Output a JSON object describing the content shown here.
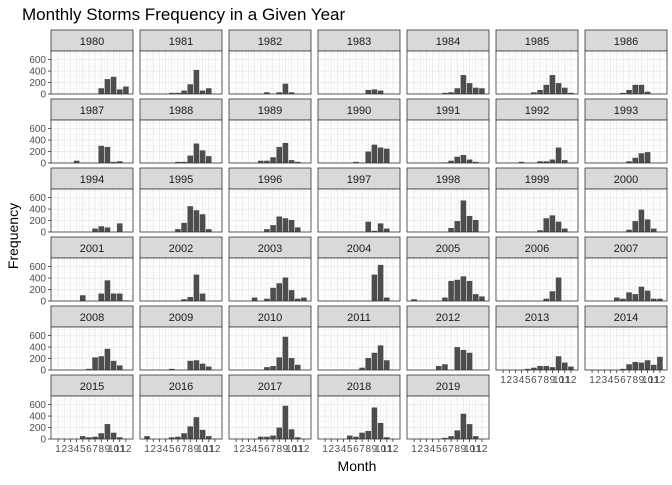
{
  "chart_data": {
    "type": "bar",
    "title": "Monthly Storms Frequency in a Given Year",
    "xlabel": "Month",
    "ylabel": "Frequency",
    "ylim": [
      0,
      750
    ],
    "yticks": [
      0,
      200,
      400,
      600
    ],
    "x_tick_labels": [
      "1",
      "2",
      "3",
      "4",
      "5",
      "6",
      "7",
      "8",
      "9",
      "10",
      "11",
      "12"
    ],
    "grid": true,
    "bar_color": "#4d4d4d",
    "strip_fill": "#d9d9d9",
    "panels": [
      {
        "year": "1980",
        "values": [
          0,
          0,
          0,
          0,
          0,
          0,
          0,
          100,
          260,
          300,
          80,
          130
        ]
      },
      {
        "year": "1981",
        "values": [
          0,
          0,
          0,
          0,
          20,
          20,
          60,
          170,
          420,
          60,
          100,
          0
        ]
      },
      {
        "year": "1982",
        "values": [
          0,
          0,
          0,
          0,
          0,
          30,
          0,
          30,
          180,
          30,
          0,
          0
        ]
      },
      {
        "year": "1983",
        "values": [
          0,
          0,
          0,
          0,
          0,
          0,
          0,
          70,
          80,
          60,
          0,
          0
        ]
      },
      {
        "year": "1984",
        "values": [
          0,
          0,
          0,
          0,
          0,
          20,
          30,
          100,
          330,
          190,
          110,
          100
        ]
      },
      {
        "year": "1985",
        "values": [
          0,
          0,
          0,
          0,
          0,
          30,
          70,
          160,
          330,
          190,
          110,
          20
        ]
      },
      {
        "year": "1986",
        "values": [
          0,
          0,
          0,
          0,
          0,
          20,
          70,
          160,
          160,
          40,
          0,
          0
        ]
      },
      {
        "year": "1987",
        "values": [
          0,
          0,
          0,
          40,
          0,
          0,
          0,
          300,
          280,
          20,
          30,
          0
        ]
      },
      {
        "year": "1988",
        "values": [
          0,
          0,
          0,
          0,
          0,
          20,
          20,
          130,
          340,
          220,
          120,
          0
        ]
      },
      {
        "year": "1989",
        "values": [
          0,
          0,
          0,
          0,
          40,
          40,
          100,
          280,
          350,
          50,
          20,
          0
        ]
      },
      {
        "year": "1990",
        "values": [
          0,
          0,
          0,
          0,
          0,
          20,
          0,
          200,
          320,
          270,
          250,
          0
        ]
      },
      {
        "year": "1991",
        "values": [
          0,
          0,
          0,
          0,
          0,
          10,
          40,
          110,
          140,
          60,
          20,
          0
        ]
      },
      {
        "year": "1992",
        "values": [
          0,
          0,
          0,
          20,
          0,
          0,
          30,
          30,
          60,
          270,
          50,
          0
        ]
      },
      {
        "year": "1993",
        "values": [
          0,
          0,
          0,
          0,
          0,
          0,
          30,
          90,
          170,
          190,
          0,
          0
        ]
      },
      {
        "year": "1994",
        "values": [
          0,
          0,
          0,
          0,
          0,
          0,
          60,
          100,
          80,
          0,
          150,
          0
        ]
      },
      {
        "year": "1995",
        "values": [
          0,
          0,
          0,
          0,
          0,
          50,
          160,
          450,
          380,
          310,
          50,
          0
        ]
      },
      {
        "year": "1996",
        "values": [
          0,
          0,
          0,
          0,
          0,
          50,
          120,
          270,
          240,
          210,
          80,
          0
        ]
      },
      {
        "year": "1997",
        "values": [
          0,
          0,
          0,
          0,
          0,
          0,
          0,
          180,
          20,
          150,
          60,
          0
        ]
      },
      {
        "year": "1998",
        "values": [
          0,
          0,
          0,
          0,
          0,
          0,
          70,
          190,
          550,
          280,
          210,
          0
        ]
      },
      {
        "year": "1999",
        "values": [
          0,
          0,
          0,
          0,
          0,
          0,
          30,
          240,
          290,
          180,
          60,
          0
        ]
      },
      {
        "year": "2000",
        "values": [
          0,
          0,
          0,
          0,
          0,
          0,
          40,
          190,
          390,
          220,
          60,
          0
        ]
      },
      {
        "year": "2001",
        "values": [
          0,
          0,
          0,
          0,
          100,
          0,
          0,
          130,
          360,
          130,
          130,
          10
        ]
      },
      {
        "year": "2002",
        "values": [
          0,
          0,
          0,
          0,
          0,
          0,
          30,
          70,
          460,
          130,
          0,
          0
        ]
      },
      {
        "year": "2003",
        "values": [
          0,
          0,
          0,
          60,
          0,
          40,
          230,
          310,
          410,
          190,
          40,
          60
        ]
      },
      {
        "year": "2004",
        "values": [
          0,
          0,
          0,
          0,
          0,
          0,
          0,
          0,
          460,
          630,
          60,
          0
        ]
      },
      {
        "year": "2005",
        "values": [
          30,
          0,
          0,
          0,
          0,
          60,
          350,
          370,
          430,
          350,
          120,
          80
        ]
      },
      {
        "year": "2006",
        "values": [
          0,
          0,
          0,
          0,
          0,
          0,
          0,
          40,
          170,
          410,
          0,
          0
        ]
      },
      {
        "year": "2007",
        "values": [
          0,
          0,
          0,
          0,
          60,
          40,
          150,
          120,
          250,
          180,
          40,
          40
        ]
      },
      {
        "year": "2008",
        "values": [
          0,
          0,
          0,
          0,
          0,
          20,
          220,
          240,
          370,
          160,
          80,
          0
        ]
      },
      {
        "year": "2009",
        "values": [
          0,
          0,
          0,
          0,
          20,
          0,
          0,
          160,
          170,
          110,
          60,
          0
        ]
      },
      {
        "year": "2010",
        "values": [
          0,
          0,
          0,
          0,
          0,
          50,
          70,
          220,
          580,
          210,
          90,
          0
        ]
      },
      {
        "year": "2011",
        "values": [
          0,
          0,
          0,
          0,
          0,
          0,
          40,
          210,
          300,
          430,
          170,
          0
        ]
      },
      {
        "year": "2012",
        "values": [
          0,
          0,
          0,
          0,
          70,
          100,
          0,
          400,
          350,
          300,
          0,
          0
        ]
      },
      {
        "year": "2013",
        "values": [
          0,
          0,
          0,
          0,
          20,
          40,
          70,
          70,
          50,
          240,
          130,
          60
        ]
      },
      {
        "year": "2014",
        "values": [
          0,
          0,
          0,
          0,
          0,
          20,
          100,
          140,
          130,
          170,
          90,
          230
        ]
      },
      {
        "year": "2015",
        "values": [
          0,
          0,
          0,
          0,
          50,
          30,
          40,
          100,
          260,
          110,
          30,
          0
        ]
      },
      {
        "year": "2016",
        "values": [
          50,
          0,
          0,
          0,
          30,
          40,
          100,
          220,
          380,
          160,
          50,
          0
        ]
      },
      {
        "year": "2017",
        "values": [
          0,
          0,
          0,
          0,
          40,
          40,
          60,
          200,
          580,
          170,
          30,
          0
        ]
      },
      {
        "year": "2018",
        "values": [
          0,
          0,
          0,
          0,
          60,
          40,
          110,
          140,
          550,
          280,
          30,
          0
        ]
      },
      {
        "year": "2019",
        "values": [
          0,
          0,
          0,
          0,
          0,
          20,
          50,
          150,
          440,
          260,
          50,
          0
        ]
      }
    ]
  }
}
